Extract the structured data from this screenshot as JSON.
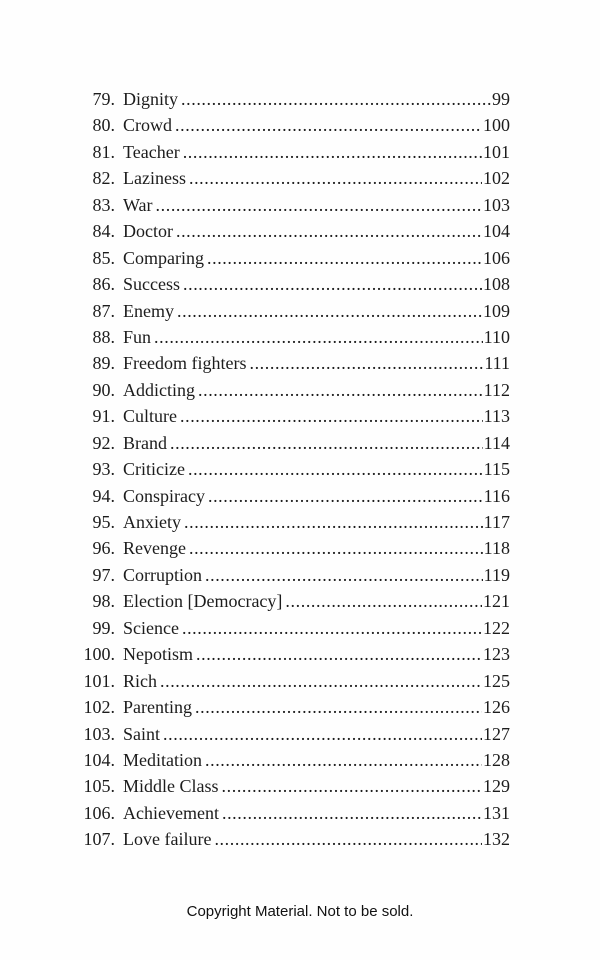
{
  "page": {
    "background_color": "#fefefe",
    "text_color": "#1c1c1c",
    "footer": "Copyright Material. Not to be sold."
  },
  "toc": {
    "entries": [
      {
        "num": "79.",
        "title": "Dignity",
        "page": "99"
      },
      {
        "num": "80.",
        "title": "Crowd",
        "page": "100"
      },
      {
        "num": "81.",
        "title": "Teacher",
        "page": "101"
      },
      {
        "num": "82.",
        "title": "Laziness",
        "page": "102"
      },
      {
        "num": "83.",
        "title": "War",
        "page": "103"
      },
      {
        "num": "84.",
        "title": "Doctor",
        "page": "104"
      },
      {
        "num": "85.",
        "title": "Comparing",
        "page": "106"
      },
      {
        "num": "86.",
        "title": "Success",
        "page": "108"
      },
      {
        "num": "87.",
        "title": "Enemy",
        "page": "109"
      },
      {
        "num": "88.",
        "title": "Fun",
        "page": "110"
      },
      {
        "num": "89.",
        "title": "Freedom fighters",
        "page": "111"
      },
      {
        "num": "90.",
        "title": "Addicting",
        "page": "112"
      },
      {
        "num": "91.",
        "title": "Culture",
        "page": "113"
      },
      {
        "num": "92.",
        "title": "Brand",
        "page": "114"
      },
      {
        "num": "93.",
        "title": "Criticize",
        "page": "115"
      },
      {
        "num": "94.",
        "title": "Conspiracy",
        "page": "116"
      },
      {
        "num": "95.",
        "title": "Anxiety",
        "page": "117"
      },
      {
        "num": "96.",
        "title": "Revenge",
        "page": "118"
      },
      {
        "num": "97.",
        "title": "Corruption",
        "page": "119"
      },
      {
        "num": "98.",
        "title": "Election [Democracy]",
        "page": "121"
      },
      {
        "num": "99.",
        "title": "Science",
        "page": "122"
      },
      {
        "num": "100.",
        "title": "Nepotism",
        "page": "123"
      },
      {
        "num": "101.",
        "title": "Rich",
        "page": "125"
      },
      {
        "num": "102.",
        "title": "Parenting",
        "page": "126"
      },
      {
        "num": "103.",
        "title": "Saint",
        "page": "127"
      },
      {
        "num": "104.",
        "title": "Meditation",
        "page": "128"
      },
      {
        "num": "105.",
        "title": "Middle Class",
        "page": "129"
      },
      {
        "num": "106.",
        "title": "Achievement",
        "page": "131"
      },
      {
        "num": "107.",
        "title": "Love failure",
        "page": "132"
      }
    ]
  }
}
